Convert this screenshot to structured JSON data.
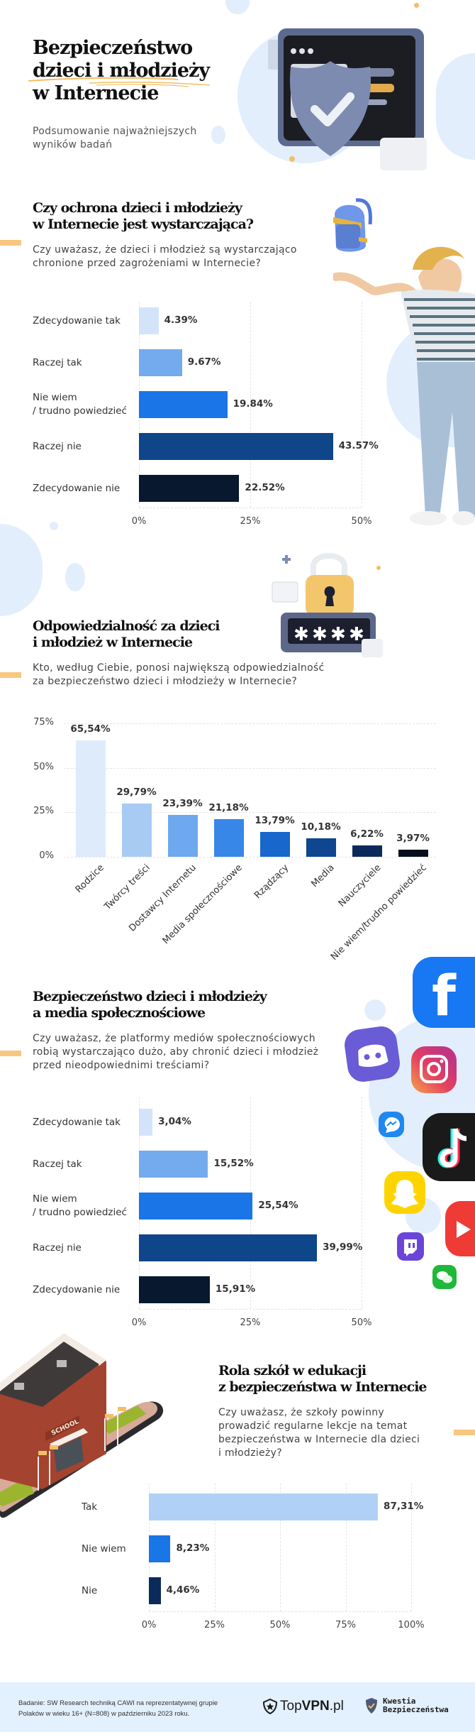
{
  "header": {
    "title_lines": [
      "Bezpieczeństwo",
      "dzieci i młodzieży",
      "w Internecie"
    ],
    "subtitle_lines": [
      "Podsumowanie najważniejszych",
      "wyników badań"
    ]
  },
  "sections": [
    {
      "title_lines": [
        "Czy ochrona dzieci i młodzieży",
        "w Internecie jest wystarczająca?"
      ],
      "question_lines": [
        "Czy uważasz, że dzieci i młodzież są wystarczająco",
        "chronione przed zagrożeniami w Internecie?"
      ]
    },
    {
      "title_lines": [
        "Odpowiedzialność za dzieci",
        "i młodzież w Internecie"
      ],
      "question_lines": [
        "Kto, według Ciebie, ponosi największą odpowiedzialność",
        "za bezpieczeństwo dzieci i młodzieży w Internecie?"
      ]
    },
    {
      "title_lines": [
        "Bezpieczeństwo dzieci i młodzieży",
        "a media społecznościowe"
      ],
      "question_lines": [
        "Czy uważasz, że platformy mediów społecznościowych",
        "robią wystarczająco dużo, aby chronić dzieci i młodzież",
        "przed nieodpowiednimi treściami?"
      ]
    },
    {
      "title_lines": [
        "Rola szkół w edukacji",
        "z bezpieczeństwa w Internecie"
      ],
      "question_lines": [
        "Czy uważasz, że szkoły powinny",
        "prowadzić regularne lekcje na temat",
        "bezpieczeństwa w Internecie dla dzieci",
        "i młodzieży?"
      ]
    }
  ],
  "chart_data": [
    {
      "type": "bar",
      "orientation": "horizontal",
      "categories": [
        "Zdecydowanie tak",
        "Raczej tak",
        "Nie wiem\n/ trudno powiedzieć",
        "Raczej nie",
        "Zdecydowanie nie"
      ],
      "category_lines": [
        [
          "Zdecydowanie tak"
        ],
        [
          "Raczej tak"
        ],
        [
          "Nie wiem",
          "/ trudno powiedzieć"
        ],
        [
          "Raczej nie"
        ],
        [
          "Zdecydowanie nie"
        ]
      ],
      "values": [
        4.39,
        9.67,
        19.84,
        43.57,
        22.52
      ],
      "labels": [
        "4.39%",
        "9.67%",
        "19.84%",
        "43.57%",
        "22.52%"
      ],
      "colors": [
        "#d3e4fa",
        "#74aaee",
        "#1a75e6",
        "#0f4589",
        "#07182f"
      ],
      "xlim": [
        0,
        50
      ],
      "xticks": [
        "0%",
        "25%",
        "50%"
      ],
      "grid": true
    },
    {
      "type": "bar",
      "orientation": "vertical",
      "categories": [
        "Rodzice",
        "Twórcy treści",
        "Dostawcy Internetu",
        "Media społecznościowe",
        "Rządzący",
        "Media",
        "Nauczyciele",
        "Nie wiem/trudno powiedzieć"
      ],
      "values": [
        65.54,
        29.79,
        23.39,
        21.18,
        13.79,
        10.18,
        6.22,
        3.97
      ],
      "labels": [
        "65,54%",
        "29,79%",
        "23,39%",
        "21,18%",
        "13,79%",
        "10,18%",
        "6,22%",
        "3,97%"
      ],
      "colors": [
        "#deebfb",
        "#a8cbf4",
        "#6ea8ef",
        "#3787e8",
        "#1767cc",
        "#0e4690",
        "#0a2b5a",
        "#050f1c"
      ],
      "ylim": [
        0,
        75
      ],
      "yticks": [
        "0%",
        "25%",
        "50%",
        "75%"
      ],
      "grid": true
    },
    {
      "type": "bar",
      "orientation": "horizontal",
      "categories": [
        "Zdecydowanie tak",
        "Raczej tak",
        "Nie wiem\n/ trudno powiedzieć",
        "Raczej nie",
        "Zdecydowanie nie"
      ],
      "category_lines": [
        [
          "Zdecydowanie tak"
        ],
        [
          "Raczej tak"
        ],
        [
          "Nie wiem",
          "/ trudno powiedzieć"
        ],
        [
          "Raczej nie"
        ],
        [
          "Zdecydowanie nie"
        ]
      ],
      "values": [
        3.04,
        15.52,
        25.54,
        39.99,
        15.91
      ],
      "labels": [
        "3,04%",
        "15,52%",
        "25,54%",
        "39,99%",
        "15,91%"
      ],
      "colors": [
        "#d3e4fa",
        "#74aaee",
        "#1a75e6",
        "#0f4589",
        "#07182f"
      ],
      "xlim": [
        0,
        50
      ],
      "xticks": [
        "0%",
        "25%",
        "50%"
      ],
      "grid": true
    },
    {
      "type": "bar",
      "orientation": "horizontal",
      "categories": [
        "Tak",
        "Nie wiem",
        "Nie"
      ],
      "category_lines": [
        [
          "Tak"
        ],
        [
          "Nie wiem"
        ],
        [
          "Nie"
        ]
      ],
      "values": [
        87.31,
        8.23,
        4.46
      ],
      "labels": [
        "87,31%",
        "8,23%",
        "4,46%"
      ],
      "colors": [
        "#b1d0f6",
        "#1a75e6",
        "#0a2b5a"
      ],
      "xlim": [
        0,
        100
      ],
      "xticks": [
        "0%",
        "25%",
        "50%",
        "75%",
        "100%"
      ],
      "grid": true
    }
  ],
  "footer": {
    "source_lines": [
      "Badanie: SW Research techniką CAWI na reprezentatywnej grupie",
      "Polaków w wieku 16+ (N=808) w październiku 2023 roku."
    ],
    "logo1_prefix": "Top",
    "logo1_bold": "VPN",
    "logo1_suffix": ".pl",
    "logo2_lines": [
      "Kwestia",
      "Bezpieczeństwa"
    ]
  }
}
